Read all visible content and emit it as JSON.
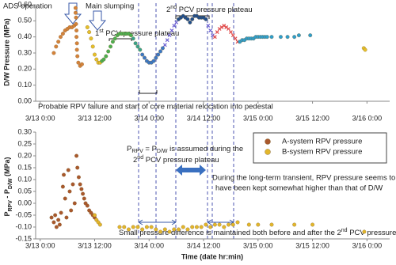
{
  "chart_data": [
    {
      "type": "scatter",
      "ylabel": "D/W Pressure (MPa)",
      "xlim": [
        -1,
        77
      ],
      "ylim": [
        0,
        0.6
      ],
      "xticks": [
        {
          "value": 0,
          "label": "3/13 0:00"
        },
        {
          "value": 12,
          "label": "3/13 12:00"
        },
        {
          "value": 24,
          "label": "3/14 0:00"
        },
        {
          "value": 36,
          "label": "3/14 12:00"
        },
        {
          "value": 48,
          "label": "3/15 0:00"
        },
        {
          "value": 60,
          "label": "3/15 12:00"
        },
        {
          "value": 72,
          "label": "3/16 0:00"
        }
      ],
      "yticks": [
        {
          "value": 0,
          "label": "0.00"
        },
        {
          "value": 0.1,
          "label": "0.10"
        },
        {
          "value": 0.2,
          "label": "0.20"
        },
        {
          "value": 0.3,
          "label": "0.30"
        },
        {
          "value": 0.4,
          "label": "0.40"
        },
        {
          "value": 0.5,
          "label": "0.50"
        },
        {
          "value": 0.6,
          "label": "0.60"
        }
      ],
      "annotations": {
        "ads": "ADS operation",
        "slump": "Main slumping",
        "plateau1": [
          "1",
          "st",
          " PCV pressure plateau"
        ],
        "plateau2": [
          "2",
          "nd",
          " PCV pressure plateau"
        ],
        "failure": "Probable RPV failure and start of core material relocation into pedestal"
      },
      "series": [
        {
          "color": "#d4823a",
          "marker": "o",
          "x": [
            3,
            3.5,
            4,
            4.5,
            5,
            5.5,
            6,
            6.5,
            7,
            7.5,
            7.8,
            7.8,
            7.9,
            7.9,
            8,
            8,
            8.1,
            8.1,
            8.2,
            8.4,
            8.8,
            9.2
          ],
          "values": [
            0.3,
            0.34,
            0.37,
            0.4,
            0.42,
            0.44,
            0.45,
            0.46,
            0.46,
            0.47,
            0.58,
            0.55,
            0.52,
            0.48,
            0.44,
            0.4,
            0.36,
            0.32,
            0.28,
            0.24,
            0.22,
            0.23
          ]
        },
        {
          "color": "#e6c02a",
          "marker": "o",
          "x": [
            10.4,
            10.8,
            11.2,
            11.6,
            12,
            12.4,
            12.8,
            13.2
          ],
          "values": [
            0.46,
            0.43,
            0.39,
            0.34,
            0.29,
            0.26,
            0.24,
            0.24
          ]
        },
        {
          "color": "#4caf50",
          "marker": "o",
          "x": [
            13.6,
            14,
            14.5,
            15,
            15.5,
            16,
            16.5,
            17,
            17.5,
            18,
            18.5,
            19,
            19.5,
            20
          ],
          "values": [
            0.25,
            0.26,
            0.28,
            0.31,
            0.34,
            0.37,
            0.39,
            0.41,
            0.42,
            0.42,
            0.42,
            0.42,
            0.42,
            0.41
          ]
        },
        {
          "color": "#3aa38a",
          "marker": "o",
          "x": [
            20.5,
            21,
            21.5,
            22
          ],
          "values": [
            0.39,
            0.36,
            0.34,
            0.32
          ]
        },
        {
          "color": "#3b78c4",
          "marker": "o",
          "x": [
            22.5,
            23,
            23.5,
            24,
            24.5,
            25,
            25.5,
            26,
            26.5,
            27
          ],
          "values": [
            0.29,
            0.27,
            0.25,
            0.24,
            0.24,
            0.25,
            0.27,
            0.29,
            0.31,
            0.33
          ]
        },
        {
          "color": "#6b5fd1",
          "marker": "x",
          "x": [
            27.5,
            28,
            28.5,
            29,
            29.5,
            30
          ],
          "values": [
            0.35,
            0.38,
            0.41,
            0.44,
            0.47,
            0.49
          ]
        },
        {
          "color": "#1f4e8c",
          "marker": "o",
          "x": [
            30.5,
            31,
            31.5,
            32,
            32.5,
            33,
            33.5,
            34,
            34.5,
            35,
            35.5,
            36,
            36.5
          ],
          "values": [
            0.51,
            0.52,
            0.53,
            0.52,
            0.51,
            0.49,
            0.51,
            0.53,
            0.53,
            0.52,
            0.52,
            0.52,
            0.51
          ]
        },
        {
          "color": "#6b5fd1",
          "marker": "x",
          "x": [
            37,
            37.5,
            38
          ],
          "values": [
            0.47,
            0.44,
            0.41
          ]
        },
        {
          "color": "#e04a4a",
          "marker": "x",
          "x": [
            38.5,
            39,
            39.5,
            40,
            40.5,
            41,
            41.5,
            42,
            42.5,
            43,
            43.5
          ],
          "values": [
            0.4,
            0.43,
            0.45,
            0.46,
            0.47,
            0.46,
            0.45,
            0.43,
            0.41,
            0.39,
            0.37
          ]
        },
        {
          "color": "#2f9ecb",
          "marker": "o",
          "x": [
            44,
            44.5,
            45,
            45.5,
            46,
            46.5,
            47,
            47.5,
            48,
            48.5,
            49,
            49.5,
            50,
            51,
            53,
            54.5,
            56,
            57,
            59.5
          ],
          "values": [
            0.37,
            0.38,
            0.38,
            0.39,
            0.39,
            0.39,
            0.39,
            0.4,
            0.4,
            0.4,
            0.4,
            0.4,
            0.4,
            0.4,
            0.4,
            0.4,
            0.4,
            0.41,
            0.41
          ]
        },
        {
          "color": "#e6c02a",
          "marker": "o",
          "x": [
            71.3,
            71.6
          ],
          "values": [
            0.33,
            0.32
          ]
        }
      ]
    },
    {
      "type": "scatter",
      "xlabel": "Time (date hr:min)",
      "ylabel": [
        "P",
        "RPV",
        " - P",
        "D/W",
        " (MPa)"
      ],
      "xlim": [
        -1,
        77
      ],
      "ylim": [
        -0.15,
        0.3
      ],
      "legend": "top-right",
      "xticks": [
        {
          "value": 0,
          "label": "3/13 0:00"
        },
        {
          "value": 12,
          "label": "3/13 12:00"
        },
        {
          "value": 24,
          "label": "3/14 0:00"
        },
        {
          "value": 36,
          "label": "3/14 12:00"
        },
        {
          "value": 48,
          "label": "3/15 0:00"
        },
        {
          "value": 60,
          "label": "3/15 12:00"
        },
        {
          "value": 72,
          "label": "3/16 0:00"
        }
      ],
      "yticks": [
        {
          "value": 0.3,
          "label": "0.30"
        },
        {
          "value": 0.25,
          "label": "0.25"
        },
        {
          "value": 0.2,
          "label": "0.20"
        },
        {
          "value": 0.15,
          "label": "0.15"
        },
        {
          "value": 0.1,
          "label": "0.10"
        },
        {
          "value": 0.05,
          "label": "0.05"
        },
        {
          "value": 0,
          "label": "0.00"
        },
        {
          "value": -0.05,
          "label": "-0.05"
        },
        {
          "value": -0.1,
          "label": "-0.10"
        },
        {
          "value": -0.15,
          "label": "-0.15"
        }
      ],
      "annotations": {
        "assumed": [
          [
            "P",
            "RPV",
            " = P",
            "D/W",
            " is assumed during the"
          ],
          [
            "2",
            "nd",
            " PCV pressure plateau"
          ]
        ],
        "transient": [
          "During the long-term transient, RPV pressure seems to",
          "have been kept somewhat higher than that of D/W"
        ],
        "small": [
          "Small pressure difference is maintained both before and after the 2",
          "nd",
          " PCV pressure plateau"
        ]
      },
      "series": [
        {
          "name": "A-system RPV pressure",
          "color": "#a9582c",
          "marker": "o",
          "x": [
            2.5,
            3,
            3.3,
            3.6,
            4,
            4.3,
            4.6,
            5,
            5.2,
            5.5,
            5.8,
            6.2,
            6.5,
            6.8,
            7.2,
            7.6,
            8,
            8.2,
            8.5,
            8.8,
            9.1,
            9.4,
            9.7,
            10,
            10.4,
            10.8,
            11.2,
            11.6,
            12
          ],
          "values": [
            -0.06,
            -0.08,
            -0.05,
            -0.1,
            -0.07,
            -0.09,
            -0.04,
            0.07,
            0.12,
            0.02,
            -0.06,
            0.14,
            0.05,
            -0.03,
            0.08,
            0.0,
            0.2,
            0.15,
            0.11,
            0.08,
            0.06,
            0.04,
            0.02,
            0.0,
            -0.01,
            -0.03,
            -0.04,
            -0.05,
            -0.06
          ]
        },
        {
          "name": "B-system RPV pressure",
          "color": "#e2b62b",
          "marker": "o",
          "x": [
            12,
            12.4,
            12.8,
            13.2,
            17.5,
            18.5,
            19.5,
            20.5,
            21.5,
            22.5,
            23.5,
            24.5,
            25.5,
            26.5,
            27.5,
            28.5,
            29.5,
            30.5,
            31.5,
            32.5,
            33.5,
            34.5,
            35.5,
            36.5,
            37.5,
            38.5,
            39.5,
            40.5,
            41.5,
            42.5,
            43.5,
            46,
            48,
            51,
            56,
            60,
            71.4
          ],
          "values": [
            -0.05,
            -0.07,
            -0.08,
            -0.09,
            -0.1,
            -0.1,
            -0.11,
            -0.1,
            -0.1,
            -0.11,
            -0.1,
            -0.1,
            -0.11,
            -0.12,
            -0.11,
            -0.12,
            -0.11,
            -0.11,
            -0.1,
            -0.11,
            -0.1,
            -0.1,
            -0.1,
            -0.09,
            -0.1,
            -0.09,
            -0.09,
            -0.1,
            -0.09,
            -0.09,
            -0.08,
            -0.09,
            -0.09,
            -0.09,
            -0.09,
            -0.09,
            -0.12
          ]
        }
      ]
    }
  ]
}
